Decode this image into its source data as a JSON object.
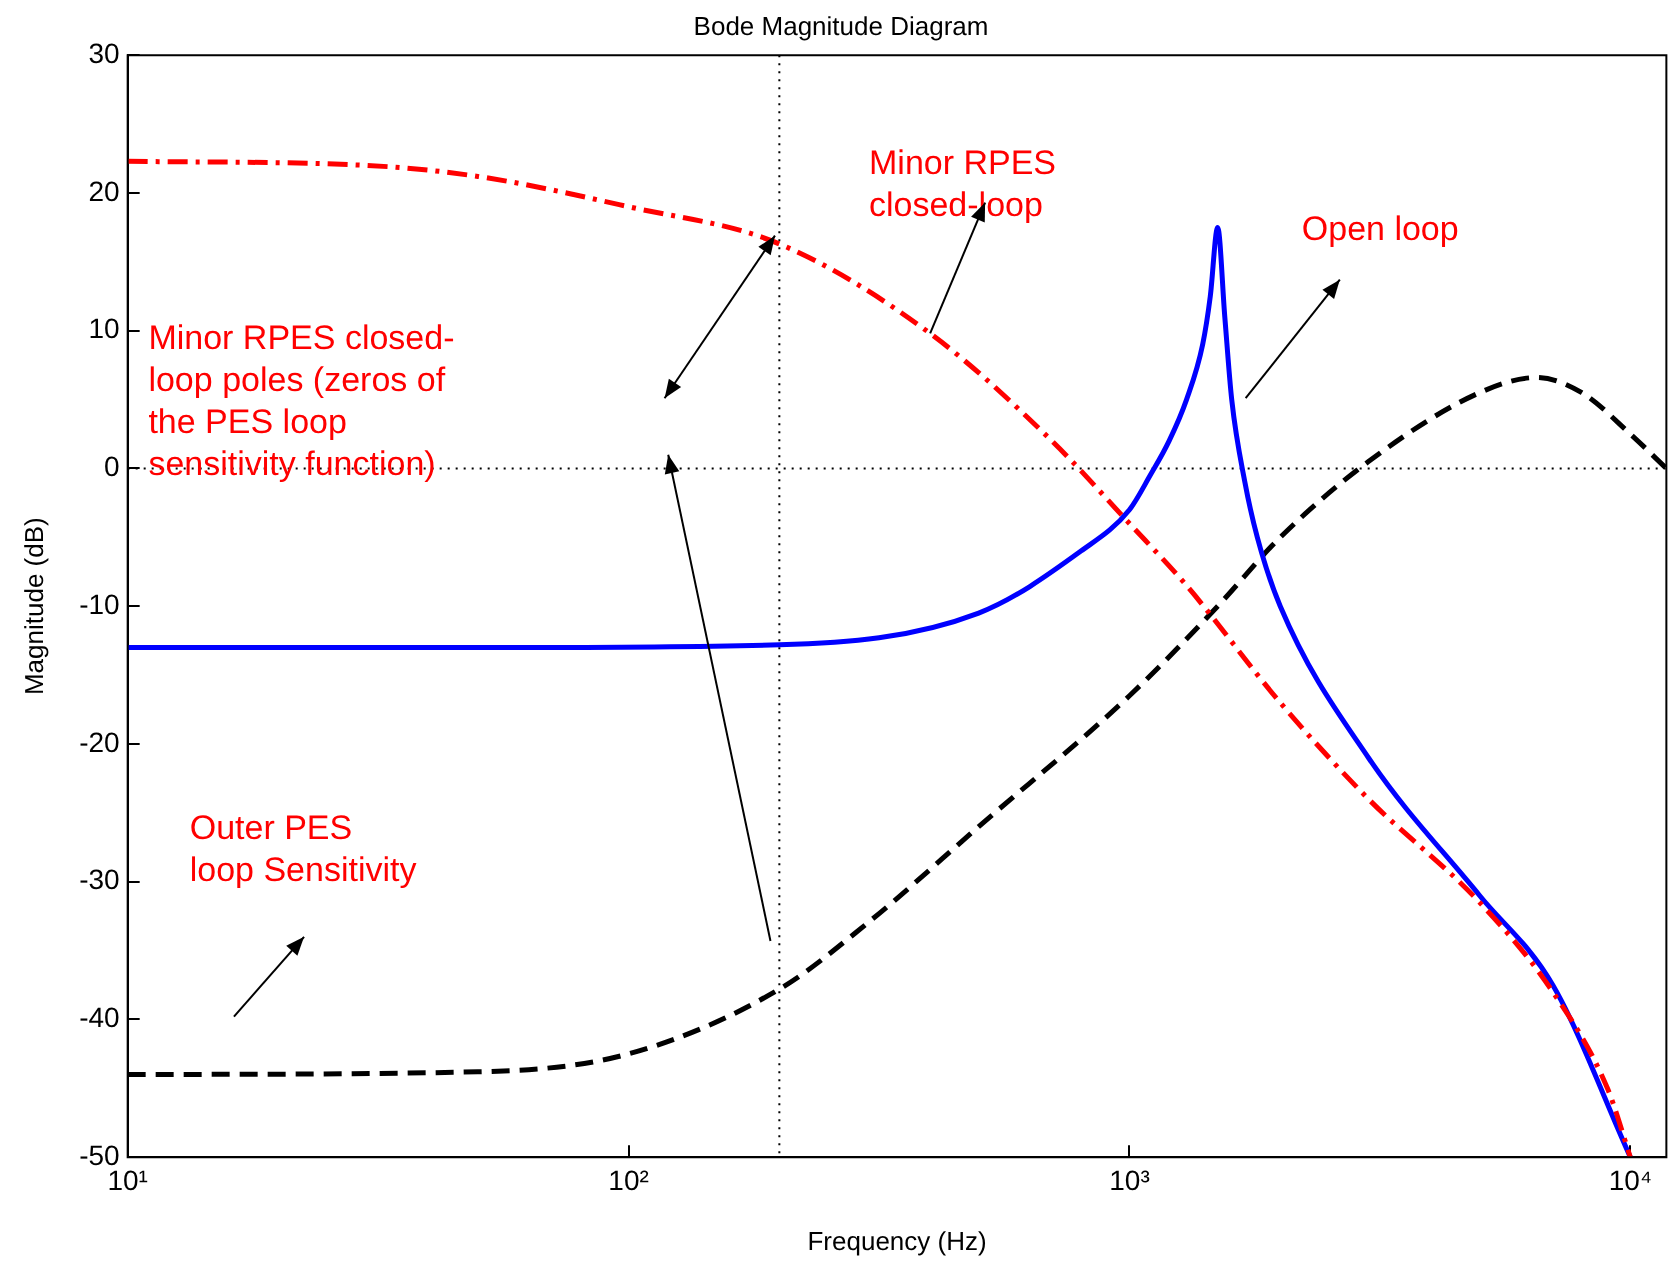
{
  "chart_data": {
    "type": "line",
    "title": "Bode Magnitude Diagram",
    "xlabel": "Frequency (Hz)",
    "ylabel": "Magnitude (dB)",
    "log": "x",
    "xlim": [
      10,
      11800
    ],
    "xticks": [
      {
        "value": 10,
        "label": "10¹"
      },
      {
        "value": 100,
        "label": "10²"
      },
      {
        "value": 1000,
        "label": "10³"
      },
      {
        "value": 10000,
        "label": "10⁴"
      }
    ],
    "ylim": [
      -50,
      30
    ],
    "yticks": [
      -50,
      -40,
      -30,
      -20,
      -10,
      0,
      10,
      20,
      30
    ],
    "grid": false,
    "legend": false,
    "marker": "none",
    "series": [
      {
        "color": "#ff0000",
        "line_style": "dashdot",
        "x": [
          10,
          30,
          50,
          100,
          200,
          400,
          700,
          1000,
          1300,
          2000,
          3000,
          5000,
          7000,
          9000,
          10000
        ],
        "values": [
          22.3,
          22,
          21.2,
          19,
          16.3,
          9.8,
          2,
          -4,
          -8.5,
          -17,
          -24,
          -31.5,
          -38,
          -45,
          -50
        ]
      },
      {
        "color": "#0000ff",
        "line_style": "solid",
        "x": [
          10,
          50,
          200,
          500,
          800,
          1000,
          1100,
          1200,
          1300,
          1400,
          1450,
          1500,
          1550,
          1600,
          1700,
          1800,
          2000,
          3000,
          5000,
          7000,
          10000
        ],
        "values": [
          -13,
          -13,
          -12.8,
          -10.5,
          -6,
          -3,
          -0.5,
          2,
          5,
          9,
          12.5,
          17.5,
          11,
          5,
          -1,
          -5,
          -10,
          -21,
          -31,
          -37.5,
          -50
        ]
      },
      {
        "color": "#000000",
        "line_style": "dashed",
        "x": [
          10,
          50,
          100,
          200,
          300,
          500,
          1000,
          1500,
          2000,
          3000,
          5000,
          6500,
          8000,
          10000,
          11800
        ],
        "values": [
          -44,
          -43.8,
          -42.5,
          -37.8,
          -33,
          -26,
          -16.5,
          -10,
          -5,
          0.5,
          5.5,
          6.6,
          5.5,
          2.5,
          0
        ]
      }
    ],
    "ref_lines": [
      {
        "axis": "x",
        "value": 200,
        "line_style": "dotted",
        "color": "#000000"
      },
      {
        "axis": "y",
        "value": 0,
        "line_style": "dotted",
        "color": "#000000"
      }
    ],
    "annotations": [
      {
        "text": "Minor RPES\nclosed-loop",
        "x": 400,
        "y": 9.8
      },
      "Open loop",
      "Minor RPES closed-\nloop poles (zeros of\nthe PES loop\nsensitivity function)",
      "Outer PES\nloop Sensitivity"
    ]
  }
}
